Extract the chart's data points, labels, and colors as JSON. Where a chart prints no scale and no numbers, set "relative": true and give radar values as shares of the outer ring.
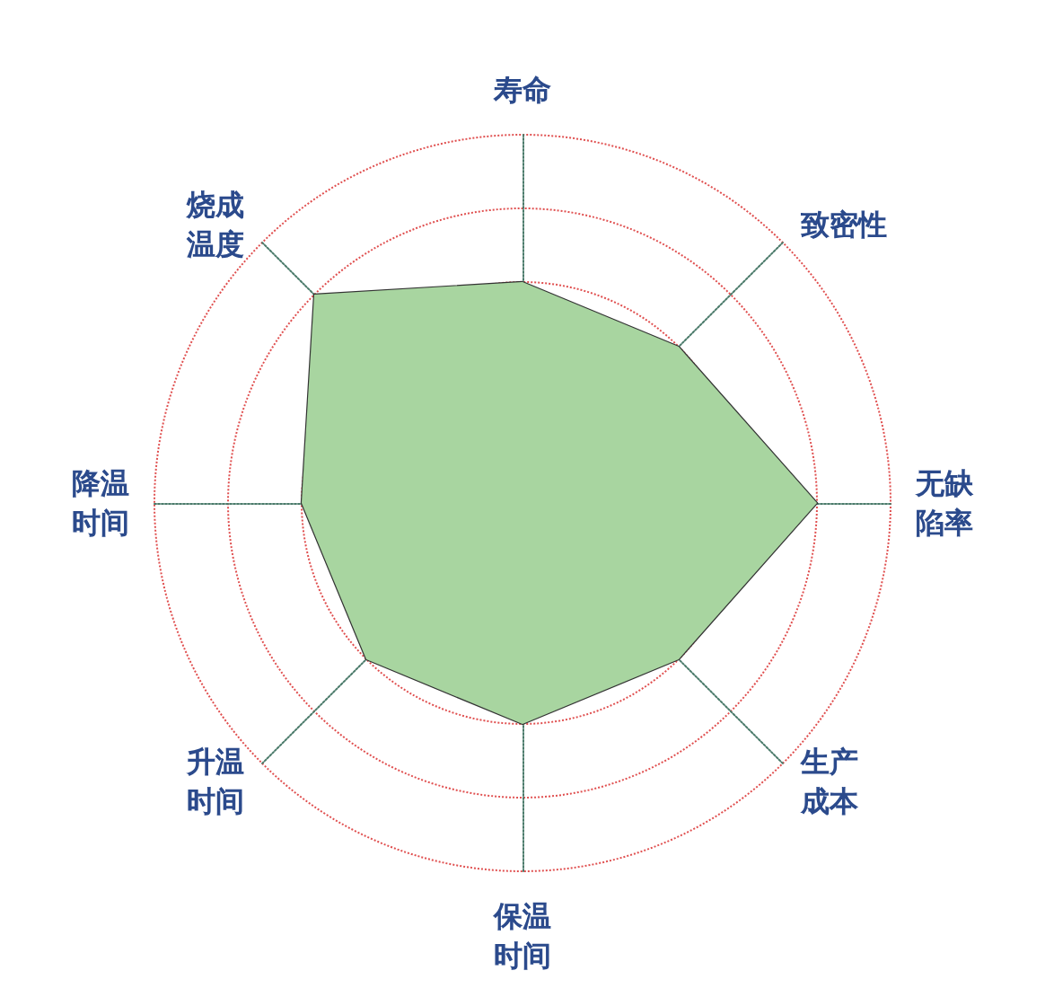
{
  "chart_data": {
    "type": "radar",
    "relative": true,
    "categories": [
      "寿命",
      "致密性",
      "无缺陷率",
      "生产成本",
      "保温时间",
      "升温时间",
      "降温时间",
      "烧成温度"
    ],
    "series": [
      {
        "color": "#a8d5a0",
        "values": [
          0.6,
          0.6,
          0.8,
          0.6,
          0.6,
          0.6,
          0.6,
          0.8
        ]
      }
    ],
    "marker": "none",
    "line_style": "solid",
    "grid": true
  }
}
